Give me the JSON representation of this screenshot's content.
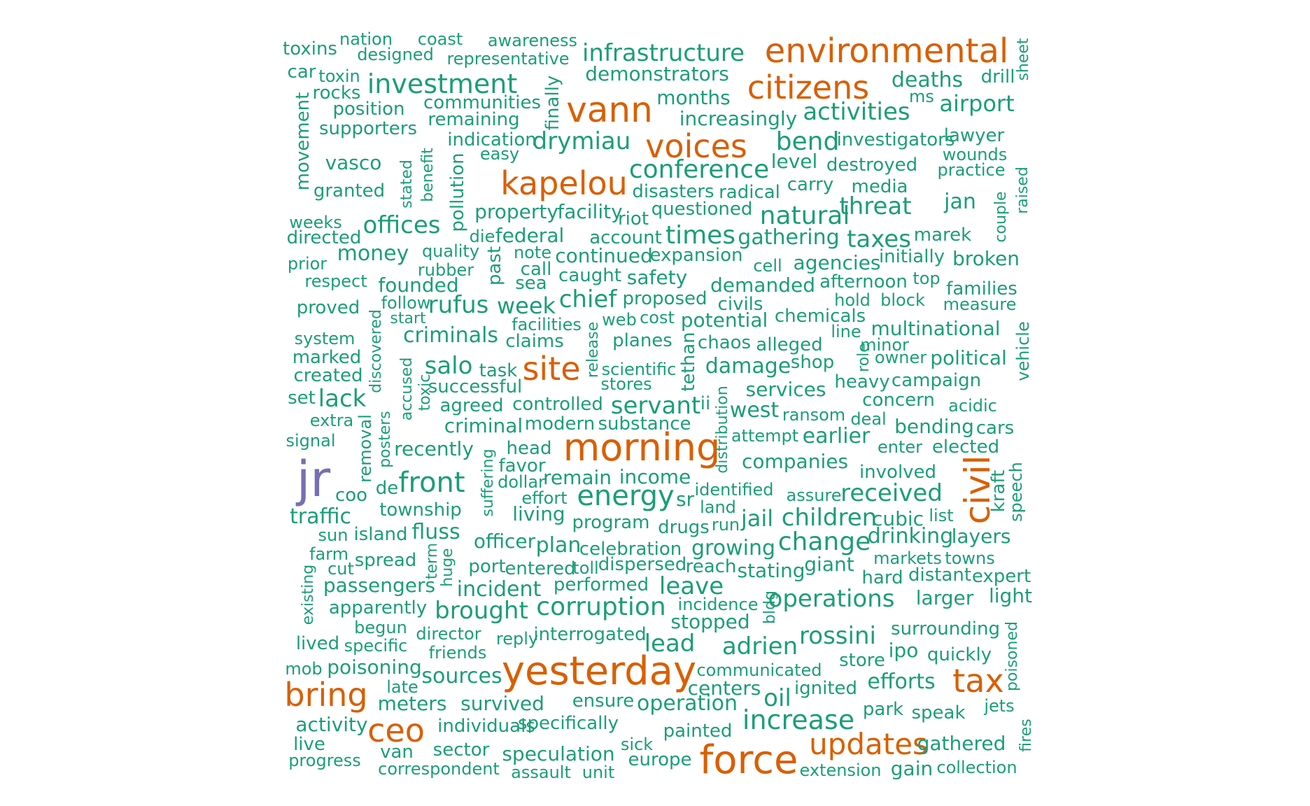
{
  "palette": {
    "high": "#d95f02",
    "mid": "#1b9e77",
    "top": "#7570b3"
  },
  "words": [
    {
      "t": "jr",
      "c": "top"
    },
    {
      "t": "environmental",
      "c": "high"
    },
    {
      "t": "citizens",
      "c": "high"
    },
    {
      "t": "vann",
      "c": "high"
    },
    {
      "t": "voices",
      "c": "high"
    },
    {
      "t": "kapelou",
      "c": "high"
    },
    {
      "t": "site",
      "c": "high"
    },
    {
      "t": "morning",
      "c": "high"
    },
    {
      "t": "civil",
      "c": "high"
    },
    {
      "t": "yesterday",
      "c": "high"
    },
    {
      "t": "tax",
      "c": "high"
    },
    {
      "t": "bring",
      "c": "high"
    },
    {
      "t": "ceo",
      "c": "high"
    },
    {
      "t": "updates",
      "c": "high"
    },
    {
      "t": "force",
      "c": "high"
    },
    {
      "t": "toxins",
      "c": "mid"
    },
    {
      "t": "nation",
      "c": "mid"
    },
    {
      "t": "coast",
      "c": "mid"
    },
    {
      "t": "awareness",
      "c": "mid"
    },
    {
      "t": "designed",
      "c": "mid"
    },
    {
      "t": "representative",
      "c": "mid"
    },
    {
      "t": "infrastructure",
      "c": "mid"
    },
    {
      "t": "sheet",
      "c": "mid"
    },
    {
      "t": "car",
      "c": "mid"
    },
    {
      "t": "toxin",
      "c": "mid"
    },
    {
      "t": "rocks",
      "c": "mid"
    },
    {
      "t": "investment",
      "c": "mid"
    },
    {
      "t": "demonstrators",
      "c": "mid"
    },
    {
      "t": "deaths",
      "c": "mid"
    },
    {
      "t": "drill",
      "c": "mid"
    },
    {
      "t": "finally",
      "c": "mid"
    },
    {
      "t": "position",
      "c": "mid"
    },
    {
      "t": "communities",
      "c": "mid"
    },
    {
      "t": "months",
      "c": "mid"
    },
    {
      "t": "ms",
      "c": "mid"
    },
    {
      "t": "airport",
      "c": "mid"
    },
    {
      "t": "activities",
      "c": "mid"
    },
    {
      "t": "movement",
      "c": "mid"
    },
    {
      "t": "remaining",
      "c": "mid"
    },
    {
      "t": "increasingly",
      "c": "mid"
    },
    {
      "t": "supporters",
      "c": "mid"
    },
    {
      "t": "indication",
      "c": "mid"
    },
    {
      "t": "drymiau",
      "c": "mid"
    },
    {
      "t": "bend",
      "c": "mid"
    },
    {
      "t": "investigators",
      "c": "mid"
    },
    {
      "t": "lawyer",
      "c": "mid"
    },
    {
      "t": "easy",
      "c": "mid"
    },
    {
      "t": "wounds",
      "c": "mid"
    },
    {
      "t": "vasco",
      "c": "mid"
    },
    {
      "t": "level",
      "c": "mid"
    },
    {
      "t": "destroyed",
      "c": "mid"
    },
    {
      "t": "practice",
      "c": "mid"
    },
    {
      "t": "stated",
      "c": "mid"
    },
    {
      "t": "benefit",
      "c": "mid"
    },
    {
      "t": "pollution",
      "c": "mid"
    },
    {
      "t": "conference",
      "c": "mid"
    },
    {
      "t": "carry",
      "c": "mid"
    },
    {
      "t": "media",
      "c": "mid"
    },
    {
      "t": "granted",
      "c": "mid"
    },
    {
      "t": "disasters",
      "c": "mid"
    },
    {
      "t": "radical",
      "c": "mid"
    },
    {
      "t": "threat",
      "c": "mid"
    },
    {
      "t": "jan",
      "c": "mid"
    },
    {
      "t": "couple",
      "c": "mid"
    },
    {
      "t": "raised",
      "c": "mid"
    },
    {
      "t": "property",
      "c": "mid"
    },
    {
      "t": "facility",
      "c": "mid"
    },
    {
      "t": "questioned",
      "c": "mid"
    },
    {
      "t": "natural",
      "c": "mid"
    },
    {
      "t": "riot",
      "c": "mid"
    },
    {
      "t": "weeks",
      "c": "mid"
    },
    {
      "t": "offices",
      "c": "mid"
    },
    {
      "t": "die",
      "c": "mid"
    },
    {
      "t": "federal",
      "c": "mid"
    },
    {
      "t": "times",
      "c": "mid"
    },
    {
      "t": "taxes",
      "c": "mid"
    },
    {
      "t": "marek",
      "c": "mid"
    },
    {
      "t": "directed",
      "c": "mid"
    },
    {
      "t": "account",
      "c": "mid"
    },
    {
      "t": "gathering",
      "c": "mid"
    },
    {
      "t": "quality",
      "c": "mid"
    },
    {
      "t": "past",
      "c": "mid"
    },
    {
      "t": "note",
      "c": "mid"
    },
    {
      "t": "money",
      "c": "mid"
    },
    {
      "t": "continued",
      "c": "mid"
    },
    {
      "t": "expansion",
      "c": "mid"
    },
    {
      "t": "initially",
      "c": "mid"
    },
    {
      "t": "broken",
      "c": "mid"
    },
    {
      "t": "prior",
      "c": "mid"
    },
    {
      "t": "rubber",
      "c": "mid"
    },
    {
      "t": "call",
      "c": "mid"
    },
    {
      "t": "cell",
      "c": "mid"
    },
    {
      "t": "agencies",
      "c": "mid"
    },
    {
      "t": "respect",
      "c": "mid"
    },
    {
      "t": "caught",
      "c": "mid"
    },
    {
      "t": "safety",
      "c": "mid"
    },
    {
      "t": "afternoon",
      "c": "mid"
    },
    {
      "t": "top",
      "c": "mid"
    },
    {
      "t": "sea",
      "c": "mid"
    },
    {
      "t": "founded",
      "c": "mid"
    },
    {
      "t": "demanded",
      "c": "mid"
    },
    {
      "t": "families",
      "c": "mid"
    },
    {
      "t": "chief",
      "c": "mid"
    },
    {
      "t": "proposed",
      "c": "mid"
    },
    {
      "t": "hold",
      "c": "mid"
    },
    {
      "t": "block",
      "c": "mid"
    },
    {
      "t": "proved",
      "c": "mid"
    },
    {
      "t": "follow",
      "c": "mid"
    },
    {
      "t": "rufus",
      "c": "mid"
    },
    {
      "t": "week",
      "c": "mid"
    },
    {
      "t": "civils",
      "c": "mid"
    },
    {
      "t": "measure",
      "c": "mid"
    },
    {
      "t": "start",
      "c": "mid"
    },
    {
      "t": "chemicals",
      "c": "mid"
    },
    {
      "t": "discovered",
      "c": "mid"
    },
    {
      "t": "facilities",
      "c": "mid"
    },
    {
      "t": "web",
      "c": "mid"
    },
    {
      "t": "cost",
      "c": "mid"
    },
    {
      "t": "potential",
      "c": "mid"
    },
    {
      "t": "line",
      "c": "mid"
    },
    {
      "t": "multinational",
      "c": "mid"
    },
    {
      "t": "vehicle",
      "c": "mid"
    },
    {
      "t": "system",
      "c": "mid"
    },
    {
      "t": "criminals",
      "c": "mid"
    },
    {
      "t": "claims",
      "c": "mid"
    },
    {
      "t": "release",
      "c": "mid"
    },
    {
      "t": "planes",
      "c": "mid"
    },
    {
      "t": "tethan",
      "c": "mid"
    },
    {
      "t": "chaos",
      "c": "mid"
    },
    {
      "t": "alleged",
      "c": "mid"
    },
    {
      "t": "minor",
      "c": "mid"
    },
    {
      "t": "marked",
      "c": "mid"
    },
    {
      "t": "role",
      "c": "mid"
    },
    {
      "t": "owner",
      "c": "mid"
    },
    {
      "t": "political",
      "c": "mid"
    },
    {
      "t": "accused",
      "c": "mid"
    },
    {
      "t": "salo",
      "c": "mid"
    },
    {
      "t": "task",
      "c": "mid"
    },
    {
      "t": "scientific",
      "c": "mid"
    },
    {
      "t": "damage",
      "c": "mid"
    },
    {
      "t": "shop",
      "c": "mid"
    },
    {
      "t": "created",
      "c": "mid"
    },
    {
      "t": "toxic",
      "c": "mid"
    },
    {
      "t": "successful",
      "c": "mid"
    },
    {
      "t": "stores",
      "c": "mid"
    },
    {
      "t": "heavy",
      "c": "mid"
    },
    {
      "t": "campaign",
      "c": "mid"
    },
    {
      "t": "services",
      "c": "mid"
    },
    {
      "t": "set",
      "c": "mid"
    },
    {
      "t": "lack",
      "c": "mid"
    },
    {
      "t": "agreed",
      "c": "mid"
    },
    {
      "t": "controlled",
      "c": "mid"
    },
    {
      "t": "servant",
      "c": "mid"
    },
    {
      "t": "ii",
      "c": "mid"
    },
    {
      "t": "concern",
      "c": "mid"
    },
    {
      "t": "acidic",
      "c": "mid"
    },
    {
      "t": "extra",
      "c": "mid"
    },
    {
      "t": "posters",
      "c": "mid"
    },
    {
      "t": "criminal",
      "c": "mid"
    },
    {
      "t": "modern",
      "c": "mid"
    },
    {
      "t": "substance",
      "c": "mid"
    },
    {
      "t": "distribution",
      "c": "mid"
    },
    {
      "t": "west",
      "c": "mid"
    },
    {
      "t": "ransom",
      "c": "mid"
    },
    {
      "t": "deal",
      "c": "mid"
    },
    {
      "t": "bending",
      "c": "mid"
    },
    {
      "t": "cars",
      "c": "mid"
    },
    {
      "t": "signal",
      "c": "mid"
    },
    {
      "t": "removal",
      "c": "mid"
    },
    {
      "t": "recently",
      "c": "mid"
    },
    {
      "t": "head",
      "c": "mid"
    },
    {
      "t": "attempt",
      "c": "mid"
    },
    {
      "t": "earlier",
      "c": "mid"
    },
    {
      "t": "enter",
      "c": "mid"
    },
    {
      "t": "elected",
      "c": "mid"
    },
    {
      "t": "suffering",
      "c": "mid"
    },
    {
      "t": "favor",
      "c": "mid"
    },
    {
      "t": "companies",
      "c": "mid"
    },
    {
      "t": "involved",
      "c": "mid"
    },
    {
      "t": "speech",
      "c": "mid"
    },
    {
      "t": "kraft",
      "c": "mid"
    },
    {
      "t": "coo",
      "c": "mid"
    },
    {
      "t": "de",
      "c": "mid"
    },
    {
      "t": "front",
      "c": "mid"
    },
    {
      "t": "dollar",
      "c": "mid"
    },
    {
      "t": "remain",
      "c": "mid"
    },
    {
      "t": "income",
      "c": "mid"
    },
    {
      "t": "identified",
      "c": "mid"
    },
    {
      "t": "assure",
      "c": "mid"
    },
    {
      "t": "received",
      "c": "mid"
    },
    {
      "t": "effort",
      "c": "mid"
    },
    {
      "t": "energy",
      "c": "mid"
    },
    {
      "t": "sr",
      "c": "mid"
    },
    {
      "t": "land",
      "c": "mid"
    },
    {
      "t": "traffic",
      "c": "mid"
    },
    {
      "t": "township",
      "c": "mid"
    },
    {
      "t": "living",
      "c": "mid"
    },
    {
      "t": "jail",
      "c": "mid"
    },
    {
      "t": "children",
      "c": "mid"
    },
    {
      "t": "cubic",
      "c": "mid"
    },
    {
      "t": "list",
      "c": "mid"
    },
    {
      "t": "program",
      "c": "mid"
    },
    {
      "t": "drugs",
      "c": "mid"
    },
    {
      "t": "run",
      "c": "mid"
    },
    {
      "t": "sun",
      "c": "mid"
    },
    {
      "t": "island",
      "c": "mid"
    },
    {
      "t": "fluss",
      "c": "mid"
    },
    {
      "t": "officer",
      "c": "mid"
    },
    {
      "t": "change",
      "c": "mid"
    },
    {
      "t": "drinking",
      "c": "mid"
    },
    {
      "t": "layers",
      "c": "mid"
    },
    {
      "t": "term",
      "c": "mid"
    },
    {
      "t": "plan",
      "c": "mid"
    },
    {
      "t": "celebration",
      "c": "mid"
    },
    {
      "t": "growing",
      "c": "mid"
    },
    {
      "t": "farm",
      "c": "mid"
    },
    {
      "t": "spread",
      "c": "mid"
    },
    {
      "t": "huge",
      "c": "mid"
    },
    {
      "t": "markets",
      "c": "mid"
    },
    {
      "t": "towns",
      "c": "mid"
    },
    {
      "t": "cut",
      "c": "mid"
    },
    {
      "t": "port",
      "c": "mid"
    },
    {
      "t": "entered",
      "c": "mid"
    },
    {
      "t": "toll",
      "c": "mid"
    },
    {
      "t": "dispersed",
      "c": "mid"
    },
    {
      "t": "reach",
      "c": "mid"
    },
    {
      "t": "stating",
      "c": "mid"
    },
    {
      "t": "giant",
      "c": "mid"
    },
    {
      "t": "existing",
      "c": "mid"
    },
    {
      "t": "passengers",
      "c": "mid"
    },
    {
      "t": "performed",
      "c": "mid"
    },
    {
      "t": "leave",
      "c": "mid"
    },
    {
      "t": "hard",
      "c": "mid"
    },
    {
      "t": "distant",
      "c": "mid"
    },
    {
      "t": "expert",
      "c": "mid"
    },
    {
      "t": "incident",
      "c": "mid"
    },
    {
      "t": "apparently",
      "c": "mid"
    },
    {
      "t": "brought",
      "c": "mid"
    },
    {
      "t": "corruption",
      "c": "mid"
    },
    {
      "t": "incidence",
      "c": "mid"
    },
    {
      "t": "bldg",
      "c": "mid"
    },
    {
      "t": "operations",
      "c": "mid"
    },
    {
      "t": "larger",
      "c": "mid"
    },
    {
      "t": "light",
      "c": "mid"
    },
    {
      "t": "stopped",
      "c": "mid"
    },
    {
      "t": "begun",
      "c": "mid"
    },
    {
      "t": "director",
      "c": "mid"
    },
    {
      "t": "reply",
      "c": "mid"
    },
    {
      "t": "interrogated",
      "c": "mid"
    },
    {
      "t": "rossini",
      "c": "mid"
    },
    {
      "t": "surrounding",
      "c": "mid"
    },
    {
      "t": "lived",
      "c": "mid"
    },
    {
      "t": "specific",
      "c": "mid"
    },
    {
      "t": "lead",
      "c": "mid"
    },
    {
      "t": "adrien",
      "c": "mid"
    },
    {
      "t": "friends",
      "c": "mid"
    },
    {
      "t": "store",
      "c": "mid"
    },
    {
      "t": "ipo",
      "c": "mid"
    },
    {
      "t": "quickly",
      "c": "mid"
    },
    {
      "t": "poisoned",
      "c": "mid"
    },
    {
      "t": "mob",
      "c": "mid"
    },
    {
      "t": "poisoning",
      "c": "mid"
    },
    {
      "t": "communicated",
      "c": "mid"
    },
    {
      "t": "sources",
      "c": "mid"
    },
    {
      "t": "efforts",
      "c": "mid"
    },
    {
      "t": "late",
      "c": "mid"
    },
    {
      "t": "centers",
      "c": "mid"
    },
    {
      "t": "ignited",
      "c": "mid"
    },
    {
      "t": "meters",
      "c": "mid"
    },
    {
      "t": "survived",
      "c": "mid"
    },
    {
      "t": "ensure",
      "c": "mid"
    },
    {
      "t": "operation",
      "c": "mid"
    },
    {
      "t": "oil",
      "c": "mid"
    },
    {
      "t": "jets",
      "c": "mid"
    },
    {
      "t": "park",
      "c": "mid"
    },
    {
      "t": "speak",
      "c": "mid"
    },
    {
      "t": "activity",
      "c": "mid"
    },
    {
      "t": "individuals",
      "c": "mid"
    },
    {
      "t": "specifically",
      "c": "mid"
    },
    {
      "t": "increase",
      "c": "mid"
    },
    {
      "t": "painted",
      "c": "mid"
    },
    {
      "t": "live",
      "c": "mid"
    },
    {
      "t": "van",
      "c": "mid"
    },
    {
      "t": "sector",
      "c": "mid"
    },
    {
      "t": "speculation",
      "c": "mid"
    },
    {
      "t": "sick",
      "c": "mid"
    },
    {
      "t": "gathered",
      "c": "mid"
    },
    {
      "t": "fires",
      "c": "mid"
    },
    {
      "t": "progress",
      "c": "mid"
    },
    {
      "t": "correspondent",
      "c": "mid"
    },
    {
      "t": "assault",
      "c": "mid"
    },
    {
      "t": "unit",
      "c": "mid"
    },
    {
      "t": "europe",
      "c": "mid"
    },
    {
      "t": "extension",
      "c": "mid"
    },
    {
      "t": "gain",
      "c": "mid"
    },
    {
      "t": "collection",
      "c": "mid"
    }
  ]
}
